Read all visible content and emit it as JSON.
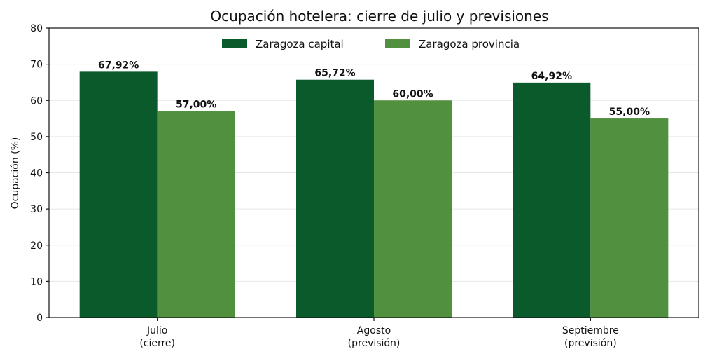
{
  "chart_data": {
    "type": "bar",
    "title": "Ocupación hotelera: cierre de julio y previsiones",
    "ylabel": "Ocupación (%)",
    "xlabel": "",
    "ylim": [
      0,
      80
    ],
    "yticks": [
      0,
      10,
      20,
      30,
      40,
      50,
      60,
      70,
      80
    ],
    "grid": true,
    "legend_position": "top-center",
    "categories": [
      [
        "Julio",
        "(cierre)"
      ],
      [
        "Agosto",
        "(previsión)"
      ],
      [
        "Septiembre",
        "(previsión)"
      ]
    ],
    "series": [
      {
        "name": "Zaragoza capital",
        "color": "#0b5a2c",
        "values": [
          67.92,
          65.72,
          64.92
        ],
        "labels": [
          "67,92%",
          "65,72%",
          "64,92%"
        ]
      },
      {
        "name": "Zaragoza provincia",
        "color": "#50903e",
        "values": [
          57.0,
          60.0,
          55.0
        ],
        "labels": [
          "57,00%",
          "60,00%",
          "55,00%"
        ]
      }
    ]
  }
}
